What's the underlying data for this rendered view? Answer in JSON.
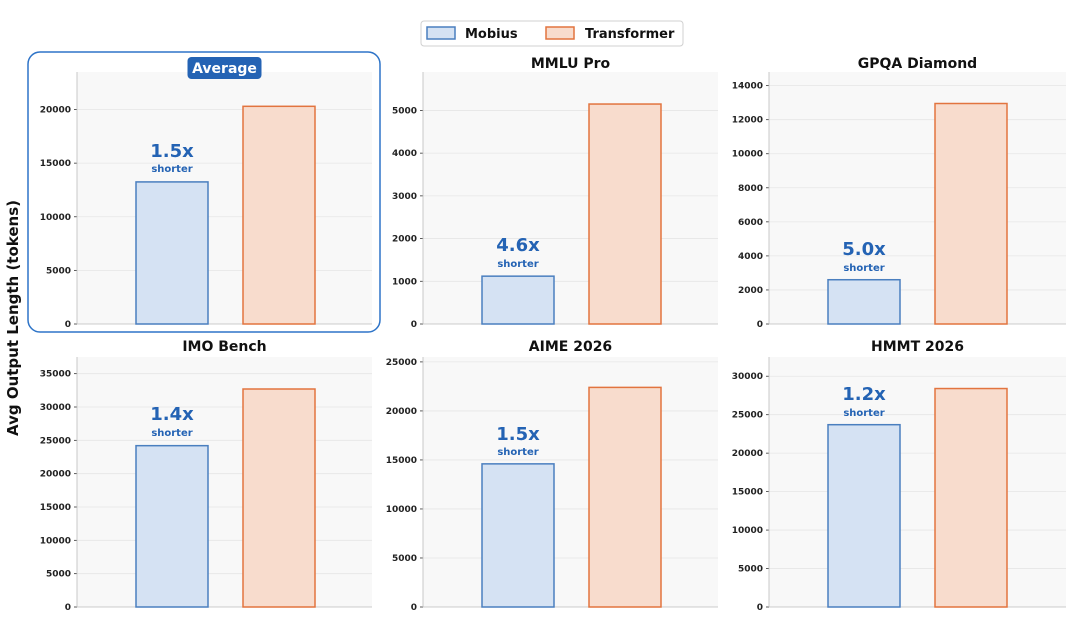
{
  "legend": {
    "items": [
      {
        "name": "Mobius",
        "fill": "#d5e2f3",
        "stroke": "#4a7fbf"
      },
      {
        "name": "Transformer",
        "fill": "#f8dccd",
        "stroke": "#e2743f"
      }
    ]
  },
  "ylabel": "Avg Output Length (tokens)",
  "colors": {
    "accent": "#2463b4",
    "highlight_border": "#2e74c8",
    "plot_bg": "#f8f8f8",
    "grid": "#e6e6e6"
  },
  "ratio_sublabel": "shorter",
  "chart_data": [
    {
      "type": "bar",
      "title": "Average",
      "highlighted": true,
      "categories": [
        "Mobius",
        "Transformer"
      ],
      "values": [
        13250,
        20300
      ],
      "ylim": [
        0,
        23500
      ],
      "yticks": [
        0,
        5000,
        10000,
        15000,
        20000
      ],
      "ratio": "1.5x",
      "grid": true
    },
    {
      "type": "bar",
      "title": "MMLU Pro",
      "highlighted": false,
      "categories": [
        "Mobius",
        "Transformer"
      ],
      "values": [
        1120,
        5150
      ],
      "ylim": [
        0,
        5900
      ],
      "yticks": [
        0,
        1000,
        2000,
        3000,
        4000,
        5000
      ],
      "ratio": "4.6x",
      "grid": true
    },
    {
      "type": "bar",
      "title": "GPQA Diamond",
      "highlighted": false,
      "categories": [
        "Mobius",
        "Transformer"
      ],
      "values": [
        2600,
        12950
      ],
      "ylim": [
        0,
        14800
      ],
      "yticks": [
        0,
        2000,
        4000,
        6000,
        8000,
        10000,
        12000,
        14000
      ],
      "ratio": "5.0x",
      "grid": true
    },
    {
      "type": "bar",
      "title": "IMO Bench",
      "highlighted": false,
      "categories": [
        "Mobius",
        "Transformer"
      ],
      "values": [
        24200,
        32700
      ],
      "ylim": [
        0,
        37500
      ],
      "yticks": [
        0,
        5000,
        10000,
        15000,
        20000,
        25000,
        30000,
        35000
      ],
      "ratio": "1.4x",
      "grid": true
    },
    {
      "type": "bar",
      "title": "AIME 2026",
      "highlighted": false,
      "categories": [
        "Mobius",
        "Transformer"
      ],
      "values": [
        14600,
        22400
      ],
      "ylim": [
        0,
        25500
      ],
      "yticks": [
        0,
        5000,
        10000,
        15000,
        20000,
        25000
      ],
      "ratio": "1.5x",
      "grid": true
    },
    {
      "type": "bar",
      "title": "HMMT 2026",
      "highlighted": false,
      "categories": [
        "Mobius",
        "Transformer"
      ],
      "values": [
        23700,
        28400
      ],
      "ylim": [
        0,
        32500
      ],
      "yticks": [
        0,
        5000,
        10000,
        15000,
        20000,
        25000,
        30000
      ],
      "ratio": "1.2x",
      "grid": true
    }
  ]
}
